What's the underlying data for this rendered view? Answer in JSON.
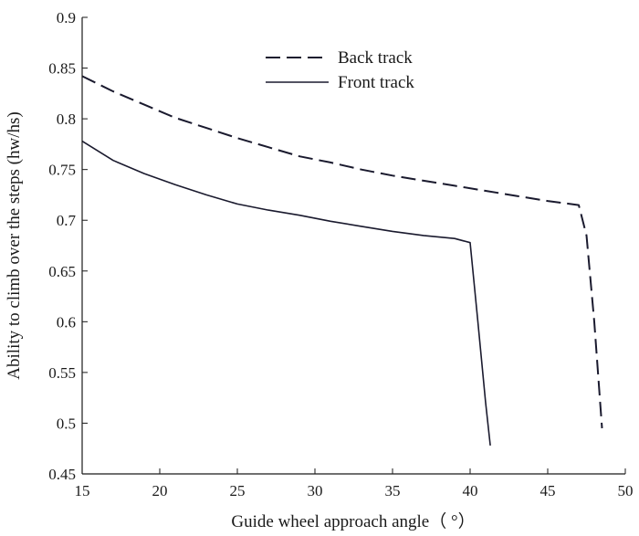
{
  "chart_data": {
    "type": "line",
    "title": "",
    "xlabel": "Guide wheel approach angle（ °）",
    "ylabel": "Ability to climb over the steps (hw/hs)",
    "xlim": [
      15,
      50
    ],
    "ylim": [
      0.45,
      0.9
    ],
    "xticks": [
      "15",
      "20",
      "25",
      "30",
      "35",
      "40",
      "45",
      "50"
    ],
    "yticks": [
      "0.45",
      "0.5",
      "0.55",
      "0.6",
      "0.65",
      "0.7",
      "0.75",
      "0.8",
      "0.85",
      "0.9"
    ],
    "grid": false,
    "legend_position": "top-center",
    "series": [
      {
        "name": "Back track",
        "style": "dashed",
        "color": "#1a1a2e",
        "x": [
          15,
          17,
          19,
          21,
          23,
          25,
          27,
          29,
          31,
          33,
          35,
          37,
          39,
          41,
          43,
          45,
          47,
          47.5,
          48,
          48.5
        ],
        "y": [
          0.842,
          0.827,
          0.814,
          0.801,
          0.791,
          0.781,
          0.772,
          0.763,
          0.757,
          0.75,
          0.744,
          0.739,
          0.734,
          0.729,
          0.724,
          0.719,
          0.715,
          0.685,
          0.6,
          0.495
        ]
      },
      {
        "name": "Front track",
        "style": "solid",
        "color": "#1a1a2e",
        "x": [
          15,
          17,
          19,
          21,
          23,
          25,
          27,
          29,
          31,
          33,
          35,
          37,
          39,
          40,
          40.5,
          41,
          41.3
        ],
        "y": [
          0.778,
          0.759,
          0.746,
          0.735,
          0.725,
          0.716,
          0.71,
          0.705,
          0.699,
          0.694,
          0.689,
          0.685,
          0.682,
          0.678,
          0.6,
          0.52,
          0.478
        ]
      }
    ]
  }
}
